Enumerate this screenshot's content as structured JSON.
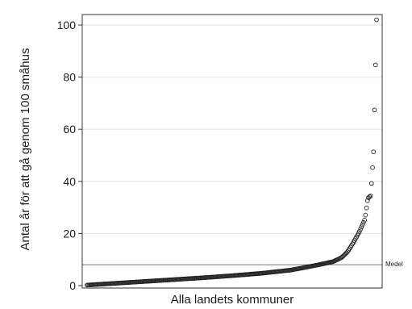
{
  "chart_data": {
    "type": "scatter",
    "title": "",
    "xlabel": "Alla landets kommuner",
    "ylabel": "Antal år för att gå genom 100 småhus",
    "ylim": [
      0,
      104
    ],
    "yticks": [
      0,
      20,
      40,
      60,
      80,
      100
    ],
    "grid": true,
    "point_count": 290,
    "series": [
      {
        "sorted_values": true,
        "profile_pct": [
          0,
          10,
          20,
          30,
          40,
          50,
          60,
          70,
          75,
          80,
          85,
          88,
          90,
          92,
          94,
          96,
          97,
          98,
          99,
          100
        ],
        "profile_values": [
          0.2,
          0.9,
          1.6,
          2.3,
          3.0,
          3.8,
          4.7,
          5.9,
          6.9,
          8.0,
          9.2,
          10.8,
          13.0,
          16.5,
          20.5,
          25.5,
          33.5,
          34.5,
          52.0,
          102.0
        ]
      }
    ],
    "reference_line": {
      "value": 8,
      "label": "Medel"
    },
    "colors": {
      "markers": "#222222",
      "reference_line": "#777777",
      "grid": "#e3e3e3",
      "frame": "#333333"
    }
  }
}
